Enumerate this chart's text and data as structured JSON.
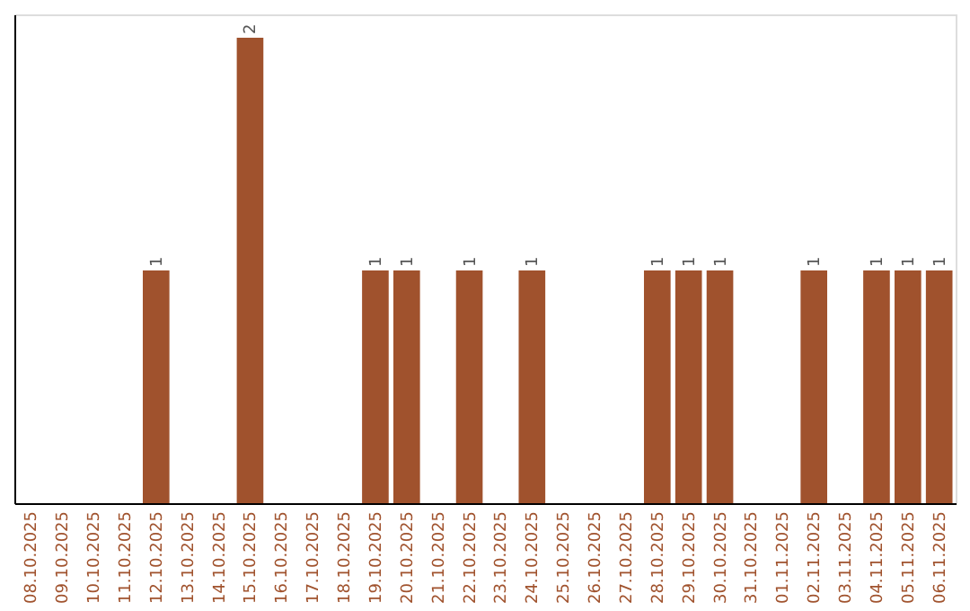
{
  "chart_data": {
    "type": "bar",
    "categories": [
      "08.10.2025",
      "09.10.2025",
      "10.10.2025",
      "11.10.2025",
      "12.10.2025",
      "13.10.2025",
      "14.10.2025",
      "15.10.2025",
      "16.10.2025",
      "17.10.2025",
      "18.10.2025",
      "19.10.2025",
      "20.10.2025",
      "21.10.2025",
      "22.10.2025",
      "23.10.2025",
      "24.10.2025",
      "25.10.2025",
      "26.10.2025",
      "27.10.2025",
      "28.10.2025",
      "29.10.2025",
      "30.10.2025",
      "31.10.2025",
      "01.11.2025",
      "02.11.2025",
      "03.11.2025",
      "04.11.2025",
      "05.11.2025",
      "06.11.2025"
    ],
    "values": [
      0,
      0,
      0,
      0,
      1,
      0,
      0,
      2,
      0,
      0,
      0,
      1,
      1,
      0,
      1,
      0,
      1,
      0,
      0,
      0,
      1,
      1,
      1,
      0,
      0,
      1,
      0,
      1,
      1,
      1
    ],
    "value_labels": [
      null,
      null,
      null,
      null,
      "1",
      null,
      null,
      "2",
      null,
      null,
      null,
      "1",
      "1",
      null,
      "1",
      null,
      "1",
      null,
      null,
      null,
      "1",
      "1",
      "1",
      null,
      null,
      "1",
      null,
      "1",
      "1",
      "1"
    ],
    "color": "#a0522d",
    "ylim": [
      0,
      2.1
    ],
    "tick_labels": "x",
    "grid": false
  }
}
